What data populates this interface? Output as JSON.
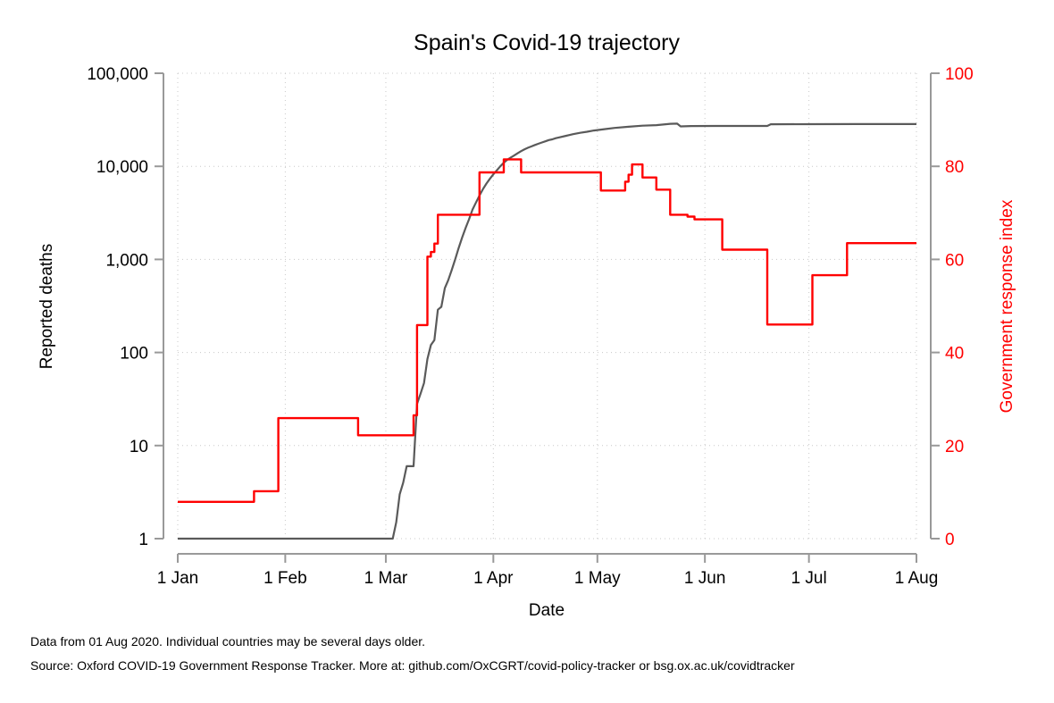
{
  "chart_data": {
    "type": "line",
    "title": "Spain's Covid-19 trajectory",
    "xlabel": "Date",
    "ylabel_left": "Reported deaths",
    "ylabel_right": "Government response index",
    "left_scale": "log",
    "left_ylim": [
      1,
      100000
    ],
    "left_ticks": [
      1,
      10,
      100,
      1000,
      10000,
      100000
    ],
    "left_tick_labels": [
      "1",
      "10",
      "100",
      "1,000",
      "10,000",
      "100,000"
    ],
    "right_ylim": [
      0,
      100
    ],
    "right_ticks": [
      0,
      20,
      40,
      60,
      80,
      100
    ],
    "right_tick_labels": [
      "0",
      "20",
      "40",
      "60",
      "80",
      "100"
    ],
    "xlim": [
      "2020-01-01",
      "2020-08-01"
    ],
    "x_ticks": [
      "2020-01-01",
      "2020-02-01",
      "2020-03-01",
      "2020-04-01",
      "2020-05-01",
      "2020-06-01",
      "2020-07-01",
      "2020-08-01"
    ],
    "x_tick_labels": [
      "1 Jan",
      "1 Feb",
      "1 Mar",
      "1 Apr",
      "1 May",
      "1 Jun",
      "1 Jul",
      "1 Aug"
    ],
    "grid": true,
    "colors": {
      "deaths": "#5a5a5a",
      "response": "#ff0000",
      "axis": "#999999"
    },
    "series": [
      {
        "axis": "left",
        "step": false,
        "points": [
          [
            "2020-01-01",
            1
          ],
          [
            "2020-03-03",
            1
          ],
          [
            "2020-03-04",
            1.5
          ],
          [
            "2020-03-05",
            3
          ],
          [
            "2020-03-06",
            4
          ],
          [
            "2020-03-07",
            6
          ],
          [
            "2020-03-08",
            6
          ],
          [
            "2020-03-09",
            6
          ],
          [
            "2020-03-10",
            28
          ],
          [
            "2020-03-11",
            36
          ],
          [
            "2020-03-12",
            47
          ],
          [
            "2020-03-13",
            85
          ],
          [
            "2020-03-14",
            120
          ],
          [
            "2020-03-15",
            136
          ],
          [
            "2020-03-16",
            288
          ],
          [
            "2020-03-17",
            309
          ],
          [
            "2020-03-18",
            491
          ],
          [
            "2020-03-19",
            598
          ],
          [
            "2020-03-20",
            767
          ],
          [
            "2020-03-21",
            1002
          ],
          [
            "2020-03-22",
            1326
          ],
          [
            "2020-03-23",
            1720
          ],
          [
            "2020-03-24",
            2182
          ],
          [
            "2020-03-25",
            2696
          ],
          [
            "2020-03-26",
            3434
          ],
          [
            "2020-03-27",
            4089
          ],
          [
            "2020-03-28",
            4858
          ],
          [
            "2020-03-29",
            5690
          ],
          [
            "2020-03-30",
            6528
          ],
          [
            "2020-03-31",
            7340
          ],
          [
            "2020-04-01",
            8189
          ],
          [
            "2020-04-02",
            9053
          ],
          [
            "2020-04-03",
            10003
          ],
          [
            "2020-04-04",
            10935
          ],
          [
            "2020-04-05",
            11744
          ],
          [
            "2020-04-06",
            12418
          ],
          [
            "2020-04-07",
            13055
          ],
          [
            "2020-04-08",
            13798
          ],
          [
            "2020-04-09",
            14555
          ],
          [
            "2020-04-10",
            15238
          ],
          [
            "2020-04-11",
            15843
          ],
          [
            "2020-04-12",
            16353
          ],
          [
            "2020-04-13",
            16972
          ],
          [
            "2020-04-14",
            17489
          ],
          [
            "2020-04-15",
            18056
          ],
          [
            "2020-04-16",
            18579
          ],
          [
            "2020-04-17",
            19130
          ],
          [
            "2020-04-18",
            19478
          ],
          [
            "2020-04-19",
            20043
          ],
          [
            "2020-04-20",
            20453
          ],
          [
            "2020-04-22",
            21282
          ],
          [
            "2020-04-24",
            22157
          ],
          [
            "2020-04-26",
            22902
          ],
          [
            "2020-04-28",
            23521
          ],
          [
            "2020-04-30",
            24275
          ],
          [
            "2020-05-03",
            25100
          ],
          [
            "2020-05-06",
            25857
          ],
          [
            "2020-05-10",
            26621
          ],
          [
            "2020-05-14",
            27321
          ],
          [
            "2020-05-18",
            27709
          ],
          [
            "2020-05-22",
            28628
          ],
          [
            "2020-05-23",
            28678
          ],
          [
            "2020-05-24",
            28752
          ],
          [
            "2020-05-25",
            26834
          ],
          [
            "2020-05-28",
            27119
          ],
          [
            "2020-06-04",
            27133
          ],
          [
            "2020-06-19",
            27136
          ],
          [
            "2020-06-20",
            28315
          ],
          [
            "2020-07-01",
            28363
          ],
          [
            "2020-07-15",
            28409
          ],
          [
            "2020-08-01",
            28445
          ]
        ]
      },
      {
        "axis": "right",
        "step": true,
        "points": [
          [
            "2020-01-01",
            7.9
          ],
          [
            "2020-01-23",
            10.2
          ],
          [
            "2020-01-30",
            25.9
          ],
          [
            "2020-02-22",
            22.2
          ],
          [
            "2020-03-09",
            26.5
          ],
          [
            "2020-03-10",
            45.9
          ],
          [
            "2020-03-13",
            60.6
          ],
          [
            "2020-03-14",
            61.6
          ],
          [
            "2020-03-15",
            63.4
          ],
          [
            "2020-03-16",
            69.6
          ],
          [
            "2020-03-28",
            78.7
          ],
          [
            "2020-04-04",
            81.5
          ],
          [
            "2020-04-09",
            78.7
          ],
          [
            "2020-05-02",
            74.8
          ],
          [
            "2020-05-09",
            76.7
          ],
          [
            "2020-05-10",
            78.2
          ],
          [
            "2020-05-11",
            80.4
          ],
          [
            "2020-05-14",
            77.6
          ],
          [
            "2020-05-18",
            75.0
          ],
          [
            "2020-05-22",
            69.6
          ],
          [
            "2020-05-27",
            69.2
          ],
          [
            "2020-05-29",
            68.6
          ],
          [
            "2020-06-06",
            62.1
          ],
          [
            "2020-06-19",
            46.0
          ],
          [
            "2020-07-02",
            56.6
          ],
          [
            "2020-07-12",
            63.5
          ],
          [
            "2020-08-01",
            63.5
          ]
        ]
      }
    ]
  },
  "footnote_1": "Data from 01 Aug 2020. Individual countries may be several days older.",
  "footnote_2": "Source: Oxford COVID-19 Government Response Tracker. More at: github.com/OxCGRT/covid-policy-tracker or bsg.ox.ac.uk/covidtracker"
}
